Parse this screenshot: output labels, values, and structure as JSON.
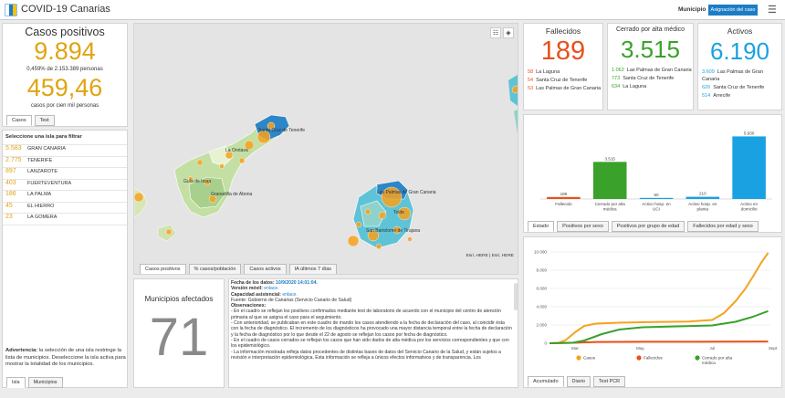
{
  "header": {
    "title": "COVID-19 Canarias",
    "municipio_label": "Municipio",
    "asignacion_button": "Asignación del caso"
  },
  "casos": {
    "title": "Casos positivos",
    "value": "9.894",
    "percent_line": "0,459% de 2.153.389 personas",
    "per_cien_mil": "459,46",
    "per_cien_mil_label": "casos por cien mil personas",
    "tabs": [
      "Casos",
      "Test"
    ]
  },
  "islas": {
    "header": "Seleccione una isla para filtrar",
    "items": [
      {
        "n": "5.583",
        "name": "GRAN CANARIA"
      },
      {
        "n": "2.775",
        "name": "TENERIFE"
      },
      {
        "n": "897",
        "name": "LANZAROTE"
      },
      {
        "n": "403",
        "name": "FUERTEVENTURA"
      },
      {
        "n": "186",
        "name": "LA PALMA"
      },
      {
        "n": "45",
        "name": "EL HIERRO"
      },
      {
        "n": "23",
        "name": "LA GOMERA"
      }
    ],
    "advertencia_bold": "Advertencia:",
    "advertencia_text": " la selección de una isla restringe la lista de municipios. Deseleccione la isla activa para mostrar la totalidad de los municipios.",
    "bottom_tabs": [
      "Isla",
      "Municipios"
    ]
  },
  "map": {
    "labels": [
      "Santa Cruz de Tenerife",
      "La Orotava",
      "Guía de Isora",
      "Granadilla de Abona",
      "Las Palmas de Gran Canaria",
      "Telde",
      "San Bartolomé de Tirajana"
    ],
    "attribution": "Esri, HERE | Esri, HERE",
    "tabs": [
      "Casos positivos",
      "% casos/población",
      "Casos activos",
      "IA últimos 7 días"
    ]
  },
  "municipios": {
    "label": "Municipios afectados",
    "value": "71"
  },
  "notes": {
    "fecha_label": "Fecha de los datos:",
    "fecha": "10/9/2020 14:01:04.",
    "version_label": "Versión móvil:",
    "version_link": "enlace.",
    "capacidad_label": "Capacidad asistencial:",
    "capacidad_link": "enlace.",
    "fuente": "Fuente: Gobierno de Canarias (Servicio Canario de Salud)",
    "obs": "Observaciones:",
    "p1": "- En el cuadro se reflejan los positivos confirmados mediante test de laboratorio de acuerdo con el municipio del centro de atención primaria al que se asigna el caso para el seguimiento.",
    "p2": "- Con anterioridad, se publicaban en este cuadro de mando los casos atendiendo a la fecha de declaración del caso, al coincidir ésta con la fecha de diagnóstico. El incremento de los diagnósticos ha provocado una mayor distancia temporal entre la fecha de declaración y la fecha de diagnóstico por lo que desde el 22 de agosto se reflejan los casos por fecha de diagnóstico.",
    "p3": "- En el cuadro de casos cerrados se reflejan los casos que han sido dados de alta médica por los servicios correspondientes y que con los epidemiológico.",
    "p4": "- La información mostrada refleja datos procedentes de distintas bases de datos del Servicio Canario de la Salud, y están sujetos a revisión e interpretación epidemiológica. Esta información se refleja a únicos efectos informativos y de transparencia. Los"
  },
  "fallecidos": {
    "title": "Fallecidos",
    "value": "189",
    "rows": [
      {
        "n": "58",
        "name": "La Laguna"
      },
      {
        "n": "54",
        "name": "Santa Cruz de Tenerife"
      },
      {
        "n": "53",
        "name": "Las Palmas de Gran Canaria"
      }
    ]
  },
  "cerrado": {
    "title": "Cerrado por alta médico",
    "value": "3.515",
    "rows": [
      {
        "n": "1.062",
        "name": "Las Palmas de Gran Canaria"
      },
      {
        "n": "773",
        "name": "Santa Cruz de Tenerife"
      },
      {
        "n": "634",
        "name": "La Laguna"
      }
    ]
  },
  "activos": {
    "title": "Activos",
    "value": "6.190",
    "rows": [
      {
        "n": "3.609",
        "name": "Las Palmas de Gran Canaria"
      },
      {
        "n": "626",
        "name": "Santa Cruz de Tenerife"
      },
      {
        "n": "514",
        "name": "Arrecife"
      }
    ]
  },
  "bar_tabs": [
    "Estado",
    "Positivos por sexo",
    "Positivos por grupo de edad",
    "Fallecidos por edad y sexo"
  ],
  "line_tabs": [
    "Acumulado",
    "Diario",
    "Test PCR"
  ],
  "chart_data": [
    {
      "type": "bar",
      "categories": [
        "Fallecido",
        "Cerrado por alta médica",
        "Activo hosp. en UCI",
        "Activo hosp. en planta",
        "Activo en domicilio"
      ],
      "values": [
        189,
        3515,
        50,
        210,
        5930
      ],
      "data_labels": [
        "189",
        "3.515",
        "50",
        "210",
        "5.930"
      ],
      "colors": [
        "#e8501c",
        "#3aa12b",
        "#1aa1e2",
        "#1aa1e2",
        "#1aa1e2"
      ],
      "ylim": [
        0,
        6400
      ]
    },
    {
      "type": "line",
      "x_tick_labels": [
        "Mar",
        "May",
        "Jul",
        "Sept"
      ],
      "y_tick_labels": [
        "10.000",
        "8.000",
        "6.000",
        "4.000",
        "2.000",
        "0"
      ],
      "ylim": [
        0,
        10000
      ],
      "xlim": [
        0,
        190
      ],
      "series": [
        {
          "name": "Casos",
          "color": "#f6a21f",
          "values": [
            [
              0,
              0
            ],
            [
              8,
              40
            ],
            [
              14,
              350
            ],
            [
              22,
              1200
            ],
            [
              30,
              1900
            ],
            [
              40,
              2150
            ],
            [
              60,
              2250
            ],
            [
              90,
              2320
            ],
            [
              120,
              2380
            ],
            [
              140,
              2550
            ],
            [
              150,
              3300
            ],
            [
              160,
              4600
            ],
            [
              168,
              5900
            ],
            [
              175,
              7300
            ],
            [
              182,
              8800
            ],
            [
              188,
              9894
            ]
          ]
        },
        {
          "name": "Fallecidos",
          "color": "#e8501c",
          "values": [
            [
              0,
              0
            ],
            [
              20,
              50
            ],
            [
              40,
              140
            ],
            [
              80,
              160
            ],
            [
              150,
              165
            ],
            [
              188,
              189
            ]
          ]
        },
        {
          "name": "Cerrado por alta médica",
          "color": "#3aa12b",
          "values": [
            [
              0,
              0
            ],
            [
              20,
              50
            ],
            [
              30,
              300
            ],
            [
              45,
              1000
            ],
            [
              60,
              1500
            ],
            [
              80,
              1750
            ],
            [
              110,
              1850
            ],
            [
              140,
              1950
            ],
            [
              160,
              2350
            ],
            [
              175,
              2900
            ],
            [
              188,
              3515
            ]
          ]
        }
      ]
    }
  ]
}
